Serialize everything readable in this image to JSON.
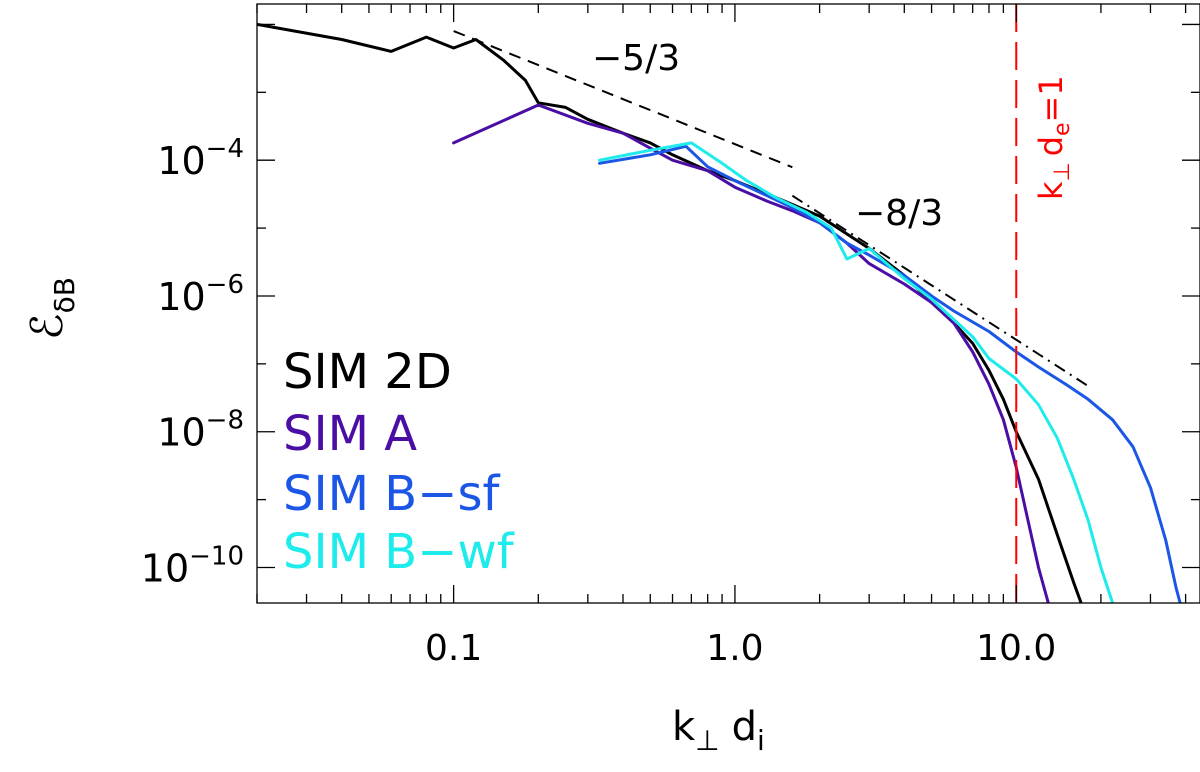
{
  "chart_data": {
    "type": "line",
    "x_scale": "log",
    "y_scale": "log",
    "xlim": [
      0.02,
      45
    ],
    "ylim": [
      3e-11,
      0.02
    ],
    "xlabel": {
      "main": "k",
      "sub1": "⊥",
      "mid": "d",
      "sub2": "i"
    },
    "ylabel": {
      "main": "ℰ",
      "sub": "δB"
    },
    "x_ticks": [
      {
        "value": 0.1,
        "label": "0.1"
      },
      {
        "value": 1.0,
        "label": "1.0"
      },
      {
        "value": 10.0,
        "label": "10.0"
      }
    ],
    "y_ticks": [
      {
        "value": 0.0001,
        "base": "10",
        "exp": "−4"
      },
      {
        "value": 1e-06,
        "base": "10",
        "exp": "−6"
      },
      {
        "value": 1e-08,
        "base": "10",
        "exp": "−8"
      },
      {
        "value": 1e-10,
        "base": "10",
        "exp": "−10"
      }
    ],
    "series": [
      {
        "name": "SIM 2D",
        "color": "#000000",
        "x": [
          0.02,
          0.04,
          0.06,
          0.08,
          0.1,
          0.12,
          0.15,
          0.18,
          0.2,
          0.25,
          0.3,
          0.4,
          0.5,
          0.6,
          0.8,
          1.0,
          1.5,
          2.0,
          3.0,
          4.0,
          5.0,
          6.0,
          7.0,
          8.0,
          9.0,
          10.0,
          12.0,
          14.0,
          16.0,
          17.0,
          17.5
        ],
        "y": [
          0.01,
          0.006,
          0.004,
          0.0065,
          0.0045,
          0.006,
          0.003,
          0.0015,
          0.0007,
          0.0006,
          0.0004,
          0.00025,
          0.00018,
          0.00012,
          7e-05,
          5e-05,
          2.5e-05,
          1.5e-05,
          5e-06,
          2e-06,
          8e-07,
          4e-07,
          2e-07,
          8e-08,
          3e-08,
          1e-08,
          2e-09,
          3e-10,
          6e-11,
          3e-11,
          2e-11
        ]
      },
      {
        "name": "SIM A",
        "color": "#4B0EA5",
        "x": [
          0.1,
          0.2,
          0.3,
          0.4,
          0.5,
          0.6,
          0.8,
          1.0,
          1.3,
          1.6,
          2.0,
          2.5,
          3.0,
          4.0,
          5.0,
          6.0,
          7.0,
          8.0,
          9.0,
          10.0,
          11.0,
          12.0,
          13.0,
          14.0
        ],
        "y": [
          0.00018,
          0.00065,
          0.00035,
          0.00025,
          0.00015,
          0.0001,
          7e-05,
          4e-05,
          2.5e-05,
          1.8e-05,
          1.2e-05,
          6e-06,
          3e-06,
          1.5e-06,
          8e-07,
          4e-07,
          1.5e-07,
          5e-08,
          1.5e-08,
          3e-09,
          5e-10,
          1e-10,
          3e-11,
          1.5e-11
        ]
      },
      {
        "name": "SIM B−sf",
        "color": "#1B56E6",
        "x": [
          0.33,
          0.5,
          0.67,
          0.8,
          1.0,
          1.3,
          1.6,
          2.0,
          2.5,
          3.0,
          4.0,
          5.0,
          6.0,
          8.0,
          10.0,
          12.0,
          15.0,
          18.0,
          22.0,
          26.0,
          30.0,
          34.0,
          37.0,
          40.0
        ],
        "y": [
          9e-05,
          0.00012,
          0.00016,
          8e-05,
          5e-05,
          3e-05,
          2e-05,
          1.2e-05,
          6e-06,
          4e-06,
          2e-06,
          1e-06,
          6e-07,
          3e-07,
          1.5e-07,
          9e-08,
          5e-08,
          3e-08,
          1.5e-08,
          6e-09,
          1.5e-09,
          2.5e-10,
          5e-11,
          1.5e-11
        ]
      },
      {
        "name": "SIM B−wf",
        "color": "#1EEBEB",
        "x": [
          0.33,
          0.5,
          0.7,
          0.9,
          1.1,
          1.4,
          1.8,
          2.2,
          2.5,
          3.0,
          4.0,
          5.0,
          6.0,
          7.0,
          8.0,
          10.0,
          12.0,
          14.0,
          16.0,
          18.0,
          20.0,
          22.0,
          23.0
        ],
        "y": [
          0.0001,
          0.00014,
          0.00018,
          9e-05,
          5e-05,
          2.8e-05,
          1.7e-05,
          1e-05,
          3.5e-06,
          5e-06,
          1.8e-06,
          9e-07,
          4.5e-07,
          2.5e-07,
          1.2e-07,
          6e-08,
          2.5e-08,
          8e-09,
          2e-09,
          5e-10,
          1e-10,
          3e-11,
          1.5e-11
        ]
      }
    ],
    "legend": {
      "position": "bottom-left",
      "entries": [
        "SIM 2D",
        "SIM A",
        "SIM B−sf",
        "SIM B−wf"
      ]
    },
    "reference_lines": [
      {
        "slope_label": "−5/3",
        "style": "dashed",
        "x_range": [
          0.1,
          1.6
        ],
        "y_at_start": 0.008
      },
      {
        "slope_label": "−8/3",
        "style": "dash-dot",
        "x_range": [
          1.6,
          18.0
        ],
        "y_at_start": 3e-05
      }
    ],
    "vline": {
      "x": 10.0,
      "color": "#FF0000",
      "label": {
        "a": "k",
        "b": "⊥",
        "c": "d",
        "d": "e",
        "e": "=1"
      }
    }
  }
}
